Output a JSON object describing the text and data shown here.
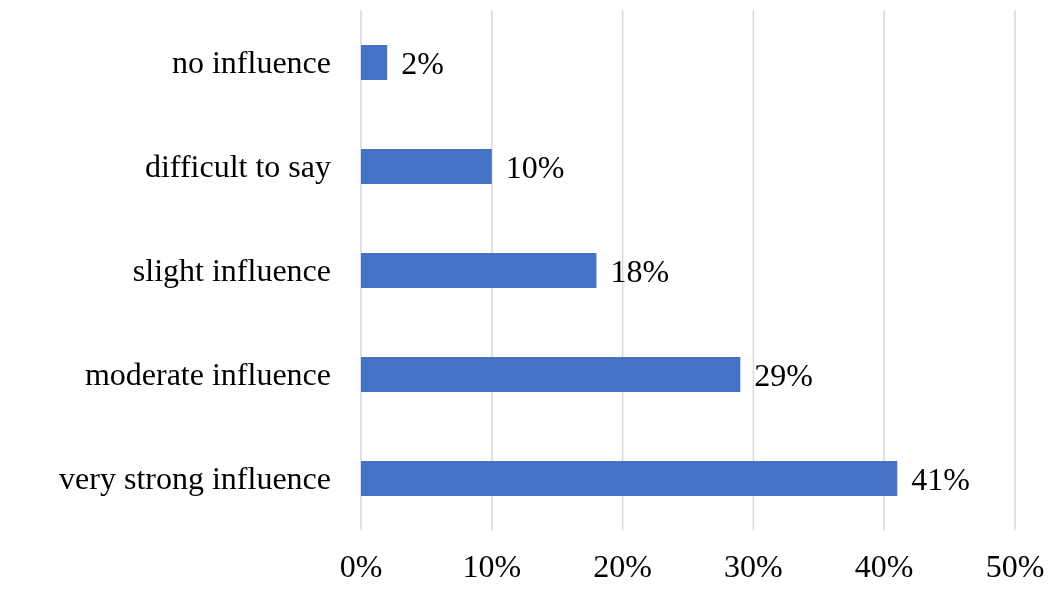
{
  "chart_data": {
    "type": "bar",
    "orientation": "horizontal",
    "categories": [
      "no influence",
      "difficult to say",
      "slight influence",
      "moderate influence",
      "very strong influence"
    ],
    "values": [
      2,
      10,
      18,
      29,
      41
    ],
    "value_labels": [
      "2%",
      "10%",
      "18%",
      "29%",
      "41%"
    ],
    "color": "#4472c4",
    "xlim": [
      0,
      50
    ],
    "xticks": [
      {
        "value": 0,
        "label": "0%"
      },
      {
        "value": 10,
        "label": "10%"
      },
      {
        "value": 20,
        "label": "20%"
      },
      {
        "value": 30,
        "label": "30%"
      },
      {
        "value": 40,
        "label": "40%"
      },
      {
        "value": 50,
        "label": "50%"
      }
    ],
    "grid": "x"
  }
}
